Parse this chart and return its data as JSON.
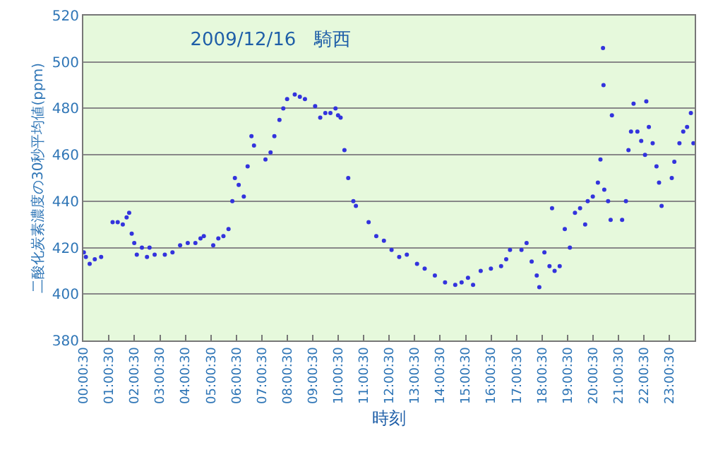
{
  "chart_data": {
    "type": "scatter",
    "title": "2009/12/16　騎西",
    "xlabel": "時刻",
    "ylabel": "二酸化炭素濃度の30秒平均値(ppm)",
    "marker": "circle",
    "grid": "y",
    "legend": false,
    "x": [
      0.02,
      0.1,
      0.25,
      0.45,
      0.7,
      1.15,
      1.35,
      1.55,
      1.7,
      1.8,
      1.9,
      2.0,
      2.1,
      2.3,
      2.5,
      2.6,
      2.8,
      3.2,
      3.5,
      3.8,
      4.1,
      4.4,
      4.6,
      4.73,
      5.1,
      5.3,
      5.5,
      5.7,
      5.85,
      5.95,
      6.1,
      6.3,
      6.45,
      6.6,
      6.7,
      7.15,
      7.35,
      7.5,
      7.7,
      7.85,
      8.0,
      8.3,
      8.5,
      8.7,
      9.1,
      9.3,
      9.5,
      9.7,
      9.9,
      10.0,
      10.1,
      10.25,
      10.4,
      10.6,
      10.7,
      11.2,
      11.5,
      11.8,
      12.1,
      12.4,
      12.7,
      13.1,
      13.4,
      13.8,
      14.2,
      14.6,
      14.85,
      15.1,
      15.3,
      15.6,
      16.0,
      16.4,
      16.6,
      16.75,
      17.2,
      17.4,
      17.6,
      17.8,
      17.9,
      18.1,
      18.3,
      18.4,
      18.5,
      18.7,
      18.9,
      19.1,
      19.3,
      19.5,
      19.7,
      19.8,
      20.0,
      20.2,
      20.3,
      20.4,
      20.42,
      20.45,
      20.6,
      20.7,
      20.75,
      21.15,
      21.3,
      21.4,
      21.5,
      21.6,
      21.75,
      21.9,
      22.05,
      22.1,
      22.2,
      22.35,
      22.5,
      22.6,
      22.7,
      23.1,
      23.2,
      23.4,
      23.55,
      23.7,
      23.85,
      23.95
    ],
    "values": [
      418,
      416,
      413,
      415,
      416,
      431,
      431,
      430,
      433,
      435,
      426,
      422,
      417,
      420,
      416,
      420,
      417,
      417,
      418,
      421,
      422,
      422,
      424,
      425,
      421,
      424,
      425,
      428,
      440,
      450,
      447,
      442,
      455,
      468,
      464,
      458,
      461,
      468,
      475,
      480,
      484,
      486,
      485,
      484,
      481,
      476,
      478,
      478,
      480,
      477,
      476,
      462,
      450,
      440,
      438,
      431,
      425,
      423,
      419,
      416,
      417,
      413,
      411,
      408,
      405,
      404,
      405,
      407,
      404,
      410,
      411,
      412,
      415,
      419,
      419,
      422,
      414,
      408,
      403,
      418,
      412,
      437,
      410,
      412,
      428,
      420,
      435,
      437,
      430,
      440,
      442,
      448,
      458,
      506,
      490,
      445,
      440,
      432,
      477,
      432,
      440,
      462,
      470,
      482,
      470,
      466,
      460,
      483,
      472,
      465,
      455,
      448,
      438,
      450,
      457,
      465,
      470,
      472,
      478,
      465
    ],
    "color": "#3333dd",
    "xlim": [
      0,
      24
    ],
    "xticks": [
      {
        "value": 0.0083,
        "label": "00:00:30"
      },
      {
        "value": 1.0083,
        "label": "01:00:30"
      },
      {
        "value": 2.0083,
        "label": "02:00:30"
      },
      {
        "value": 3.0083,
        "label": "03:00:30"
      },
      {
        "value": 4.0083,
        "label": "04:00:30"
      },
      {
        "value": 5.0083,
        "label": "05:00:30"
      },
      {
        "value": 6.0083,
        "label": "06:00:30"
      },
      {
        "value": 7.0083,
        "label": "07:00:30"
      },
      {
        "value": 8.0083,
        "label": "08:00:30"
      },
      {
        "value": 9.0083,
        "label": "09:00:30"
      },
      {
        "value": 10.0083,
        "label": "10:00:30"
      },
      {
        "value": 11.0083,
        "label": "11:00:30"
      },
      {
        "value": 12.0083,
        "label": "12:00:30"
      },
      {
        "value": 13.0083,
        "label": "13:00:30"
      },
      {
        "value": 14.0083,
        "label": "14:00:30"
      },
      {
        "value": 15.0083,
        "label": "15:00:30"
      },
      {
        "value": 16.0083,
        "label": "16:00:30"
      },
      {
        "value": 17.0083,
        "label": "17:00:30"
      },
      {
        "value": 18.0083,
        "label": "18:00:30"
      },
      {
        "value": 19.0083,
        "label": "19:00:30"
      },
      {
        "value": 20.0083,
        "label": "20:00:30"
      },
      {
        "value": 21.0083,
        "label": "21:00:30"
      },
      {
        "value": 22.0083,
        "label": "22:00:30"
      },
      {
        "value": 23.0083,
        "label": "23:00:30"
      }
    ],
    "ylim": [
      380,
      520
    ],
    "yticks": [
      380,
      400,
      420,
      440,
      460,
      480,
      500,
      520
    ]
  }
}
